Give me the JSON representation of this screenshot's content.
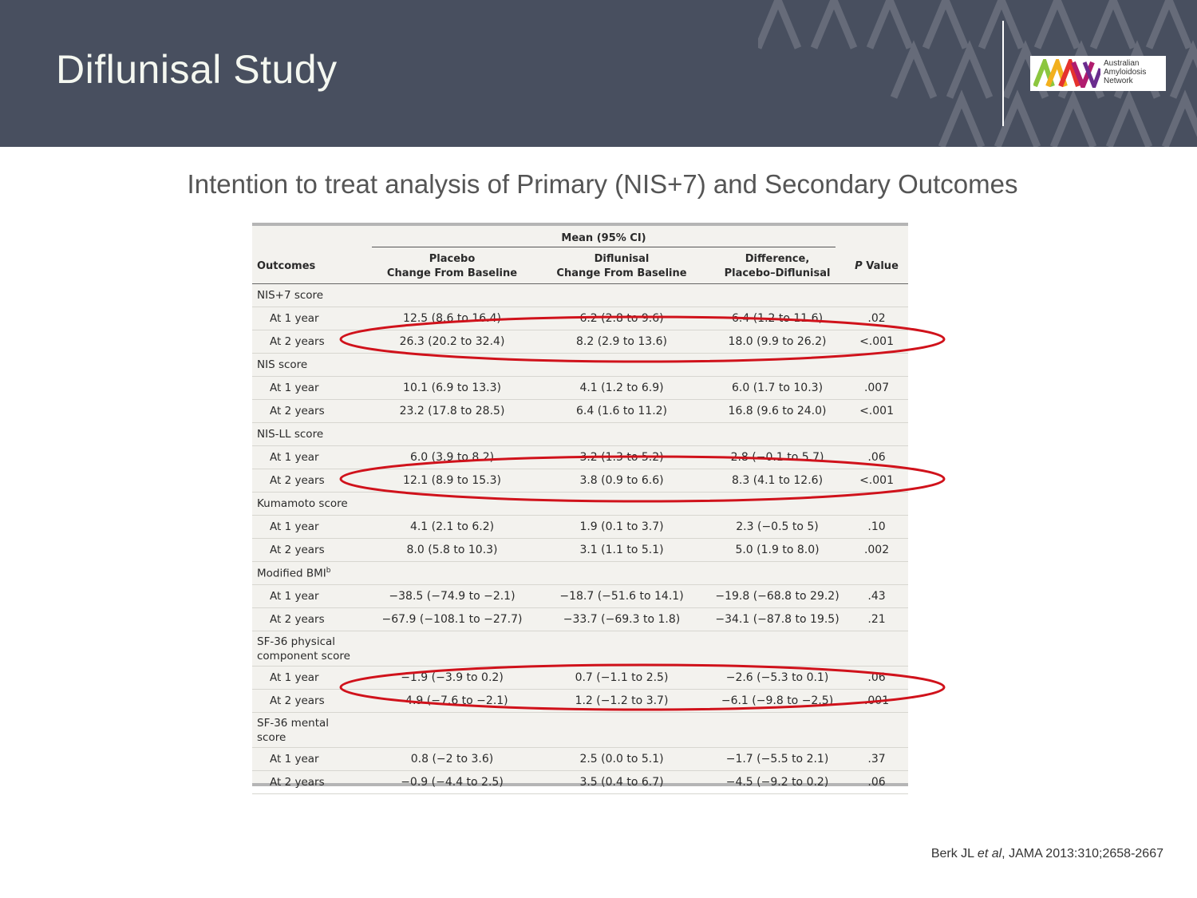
{
  "slide": {
    "title": "Diflunisal Study",
    "subtitle": "Intention to treat analysis of Primary (NIS+7) and Secondary Outcomes"
  },
  "logo": {
    "line1": "Australian",
    "line2": "Amyloidosis",
    "line3": "Network"
  },
  "table": {
    "group_header": "Mean (95% CI)",
    "columns": {
      "outcomes": "Outcomes",
      "placebo_1": "Placebo",
      "placebo_2": "Change From Baseline",
      "diflunisal_1": "Diflunisal",
      "diflunisal_2": "Change From Baseline",
      "difference_1": "Difference,",
      "difference_2": "Placebo–Diflunisal",
      "p_value_letter": "P",
      "p_value_word": " Value"
    },
    "sections": [
      {
        "name": "NIS+7 score",
        "rows": [
          {
            "label": "At 1 year",
            "placebo": "12.5 (8.6 to 16.4)",
            "diflunisal": "6.2 (2.8 to 9.6)",
            "difference": "6.4 (1.2 to 11.6)",
            "p": ".02"
          },
          {
            "label": "At 2 years",
            "placebo": "26.3 (20.2 to 32.4)",
            "diflunisal": "8.2 (2.9 to 13.6)",
            "difference": "18.0 (9.9 to 26.2)",
            "p": "<.001"
          }
        ]
      },
      {
        "name": "NIS score",
        "rows": [
          {
            "label": "At 1 year",
            "placebo": "10.1 (6.9 to 13.3)",
            "diflunisal": "4.1 (1.2 to 6.9)",
            "difference": "6.0 (1.7 to 10.3)",
            "p": ".007"
          },
          {
            "label": "At 2 years",
            "placebo": "23.2 (17.8 to 28.5)",
            "diflunisal": "6.4 (1.6 to 11.2)",
            "difference": "16.8 (9.6 to 24.0)",
            "p": "<.001"
          }
        ]
      },
      {
        "name": "NIS-LL score",
        "rows": [
          {
            "label": "At 1 year",
            "placebo": "6.0 (3.9 to 8.2)",
            "diflunisal": "3.2 (1.3 to 5.2)",
            "difference": "2.8 (−0.1 to 5.7)",
            "p": ".06"
          },
          {
            "label": "At 2 years",
            "placebo": "12.1 (8.9 to 15.3)",
            "diflunisal": "3.8 (0.9 to 6.6)",
            "difference": "8.3 (4.1 to 12.6)",
            "p": "<.001"
          }
        ]
      },
      {
        "name": "Kumamoto score",
        "rows": [
          {
            "label": "At 1 year",
            "placebo": "4.1 (2.1 to 6.2)",
            "diflunisal": "1.9 (0.1 to 3.7)",
            "difference": "2.3 (−0.5 to 5)",
            "p": ".10"
          },
          {
            "label": "At 2 years",
            "placebo": "8.0 (5.8 to 10.3)",
            "diflunisal": "3.1 (1.1 to 5.1)",
            "difference": "5.0 (1.9 to 8.0)",
            "p": ".002"
          }
        ]
      },
      {
        "name": "Modified BMI",
        "sup": "b",
        "rows": [
          {
            "label": "At 1 year",
            "placebo": "−38.5 (−74.9 to −2.1)",
            "diflunisal": "−18.7 (−51.6 to 14.1)",
            "difference": "−19.8 (−68.8 to 29.2)",
            "p": ".43"
          },
          {
            "label": "At 2 years",
            "placebo": "−67.9 (−108.1 to −27.7)",
            "diflunisal": "−33.7 (−69.3 to 1.8)",
            "difference": "−34.1 (−87.8 to 19.5)",
            "p": ".21"
          }
        ]
      },
      {
        "name_line1": "SF-36 physical",
        "name_line2": "component score",
        "rows": [
          {
            "label": "At 1 year",
            "placebo": "−1.9 (−3.9 to 0.2)",
            "diflunisal": "0.7 (−1.1 to 2.5)",
            "difference": "−2.6 (−5.3 to 0.1)",
            "p": ".06"
          },
          {
            "label": "At 2 years",
            "placebo": "−4.9 (−7.6 to −2.1)",
            "diflunisal": "1.2 (−1.2 to 3.7)",
            "difference": "−6.1 (−9.8 to −2.5)",
            "p": ".001"
          }
        ]
      },
      {
        "name_line1": "SF-36 mental",
        "name_line2": "score",
        "rows": [
          {
            "label": "At 1 year",
            "placebo": "0.8 (−2 to 3.6)",
            "diflunisal": "2.5 (0.0 to 5.1)",
            "difference": "−1.7 (−5.5 to 2.1)",
            "p": ".37"
          },
          {
            "label": "At 2 years",
            "placebo": "−0.9 (−4.4 to 2.5)",
            "diflunisal": "3.5 (0.4 to 6.7)",
            "difference": "−4.5 (−9.2 to 0.2)",
            "p": ".06"
          }
        ]
      }
    ]
  },
  "citation": {
    "authors": "Berk JL ",
    "etal": "et al",
    "rest": ", JAMA 2013:310;2658-2667"
  },
  "colors": {
    "header_bg": "#484f5f",
    "highlight_oval": "#d0121b"
  }
}
